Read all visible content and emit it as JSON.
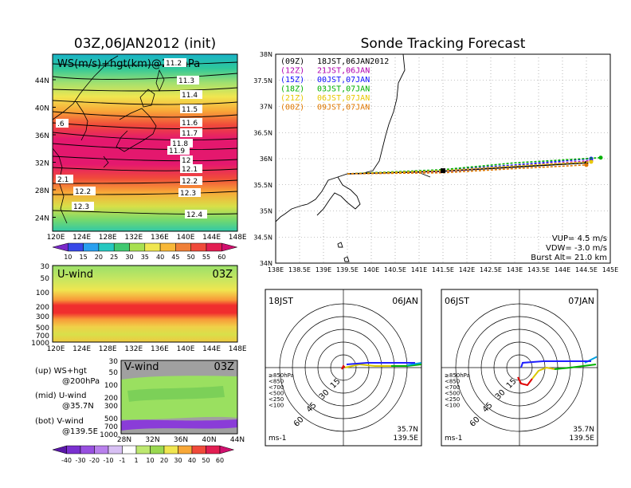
{
  "left": {
    "title": "03Z,06JAN2012 (init)",
    "map_label": "WS(m/s)+hgt(km)@200hPa",
    "lat_ticks": [
      "44N",
      "40N",
      "36N",
      "32N",
      "28N",
      "24N"
    ],
    "lon_ticks": [
      "120E",
      "124E",
      "128E",
      "132E",
      "136E",
      "140E",
      "144E",
      "148E"
    ],
    "contour_labels": [
      "11.2",
      "11.3",
      "11.4",
      "11.5",
      "11.6",
      "11.7",
      "11.8",
      "11.9",
      "12",
      "12.1",
      "12.2",
      "12.3",
      "12.4",
      "12.2",
      "12.3",
      ".6",
      "2.1"
    ],
    "ws_colorbar": [
      "10",
      "15",
      "20",
      "25",
      "30",
      "35",
      "40",
      "45",
      "50",
      "55",
      "60"
    ],
    "uwind_title": "U-wind",
    "uwind_time": "03Z",
    "pressure_ticks": [
      "30",
      "50",
      "100",
      "200",
      "300",
      "500",
      "700",
      "1000"
    ],
    "vwind_title": "V-wind",
    "vwind_time": "03Z",
    "vwind_lat_ticks": [
      "28N",
      "32N",
      "36N",
      "40N",
      "44N"
    ],
    "vwind_colorbar": [
      "-40",
      "-30",
      "-20",
      "-10",
      "-1",
      "1",
      "10",
      "20",
      "30",
      "40",
      "50",
      "60"
    ],
    "legend": [
      {
        "a": "(up) WS+hgt",
        "b": "@200hPa"
      },
      {
        "a": "(mid) U-wind",
        "b": "@35.7N"
      },
      {
        "a": "(bot) V-wind",
        "b": "@139.5E"
      }
    ]
  },
  "right": {
    "title": "Sonde Tracking Forecast",
    "lat_ticks": [
      "38N",
      "37.5N",
      "37N",
      "36.5N",
      "36N",
      "35.5N",
      "35N",
      "34.5N",
      "34N"
    ],
    "lon_ticks": [
      "138E",
      "138.5E",
      "139E",
      "139.5E",
      "140E",
      "140.5E",
      "141E",
      "141.5E",
      "142E",
      "142.5E",
      "143E",
      "143.5E",
      "144E",
      "144.5E",
      "145E"
    ],
    "launches": [
      {
        "utc": "(09Z)",
        "jst": "18JST,06JAN2012",
        "color": "#000000"
      },
      {
        "utc": "(12Z)",
        "jst": "21JST,06JAN",
        "color": "#b000b0"
      },
      {
        "utc": "(15Z)",
        "jst": "00JST,07JAN",
        "color": "#1010ff"
      },
      {
        "utc": "(18Z)",
        "jst": "03JST,07JAN",
        "color": "#00b000"
      },
      {
        "utc": "(21Z)",
        "jst": "06JST,07JAN",
        "color": "#e8c800"
      },
      {
        "utc": "(00Z)",
        "jst": "09JST,07JAN",
        "color": "#e07800"
      }
    ],
    "params": [
      "VUP= 4.5 m/s",
      "VDW= -3.0 m/s",
      "Burst Alt= 21.0 km"
    ],
    "polar1": {
      "time": "18JST",
      "date": "06JAN"
    },
    "polar2": {
      "time": "06JST",
      "date": "07JAN"
    },
    "ring_labels": [
      "15",
      "30",
      "45",
      "60"
    ],
    "pressure_legend": [
      "≥850hPa",
      "<850",
      "<700",
      "<500",
      "<250",
      "<100"
    ],
    "pressure_colors": [
      "#e00000",
      "#ff8c00",
      "#d8c800",
      "#00b000",
      "#00a0e0",
      "#2020ff"
    ],
    "location": [
      "35.7N",
      "139.5E"
    ],
    "unit": "ms-1"
  },
  "chart_data": [
    {
      "type": "heatmap",
      "title": "WS(m/s)+hgt(km)@200hPa",
      "x_range": [
        "120E",
        "148E"
      ],
      "y_range": [
        "22N",
        "47N"
      ],
      "contours_km": [
        11.2,
        11.3,
        11.4,
        11.5,
        11.6,
        11.7,
        11.8,
        11.9,
        12,
        12.1,
        12.2,
        12.3,
        12.4
      ],
      "colorbar": [
        10,
        15,
        20,
        25,
        30,
        35,
        40,
        45,
        50,
        55,
        60
      ]
    },
    {
      "type": "heatmap",
      "title": "U-wind",
      "x_range": [
        "120E",
        "148E"
      ],
      "y_ticks_hPa": [
        30,
        50,
        100,
        200,
        300,
        500,
        700,
        1000
      ]
    },
    {
      "type": "heatmap",
      "title": "V-wind",
      "x_range": [
        "28N",
        "44N"
      ],
      "y_ticks_hPa": [
        30,
        50,
        100,
        200,
        300,
        500,
        700,
        1000
      ],
      "colorbar": [
        -40,
        -30,
        -20,
        -10,
        -1,
        1,
        10,
        20,
        30,
        40,
        50,
        60
      ]
    },
    {
      "type": "line",
      "title": "Sonde Tracking Forecast",
      "xlim": [
        138,
        145
      ],
      "ylim": [
        34,
        38
      ],
      "series": [
        {
          "name": "(09Z)",
          "x": [
            139.5,
            141.5,
            143.0,
            144.5
          ],
          "y": [
            35.71,
            35.76,
            35.84,
            35.92
          ]
        },
        {
          "name": "(12Z)",
          "x": [
            139.5,
            141.5,
            143.0,
            144.6
          ],
          "y": [
            35.71,
            35.76,
            35.86,
            35.96
          ]
        },
        {
          "name": "(15Z)",
          "x": [
            139.5,
            141.5,
            143.0,
            144.6
          ],
          "y": [
            35.71,
            35.78,
            35.88,
            36.0
          ]
        },
        {
          "name": "(18Z)",
          "x": [
            139.5,
            141.5,
            143.0,
            144.8
          ],
          "y": [
            35.71,
            35.79,
            35.92,
            36.02
          ]
        },
        {
          "name": "(21Z)",
          "x": [
            139.5,
            141.5,
            143.0,
            144.6
          ],
          "y": [
            35.71,
            35.77,
            35.86,
            35.94
          ]
        },
        {
          "name": "(00Z)",
          "x": [
            139.5,
            141.5,
            143.0,
            144.5
          ],
          "y": [
            35.71,
            35.73,
            35.81,
            35.88
          ]
        }
      ]
    }
  ]
}
